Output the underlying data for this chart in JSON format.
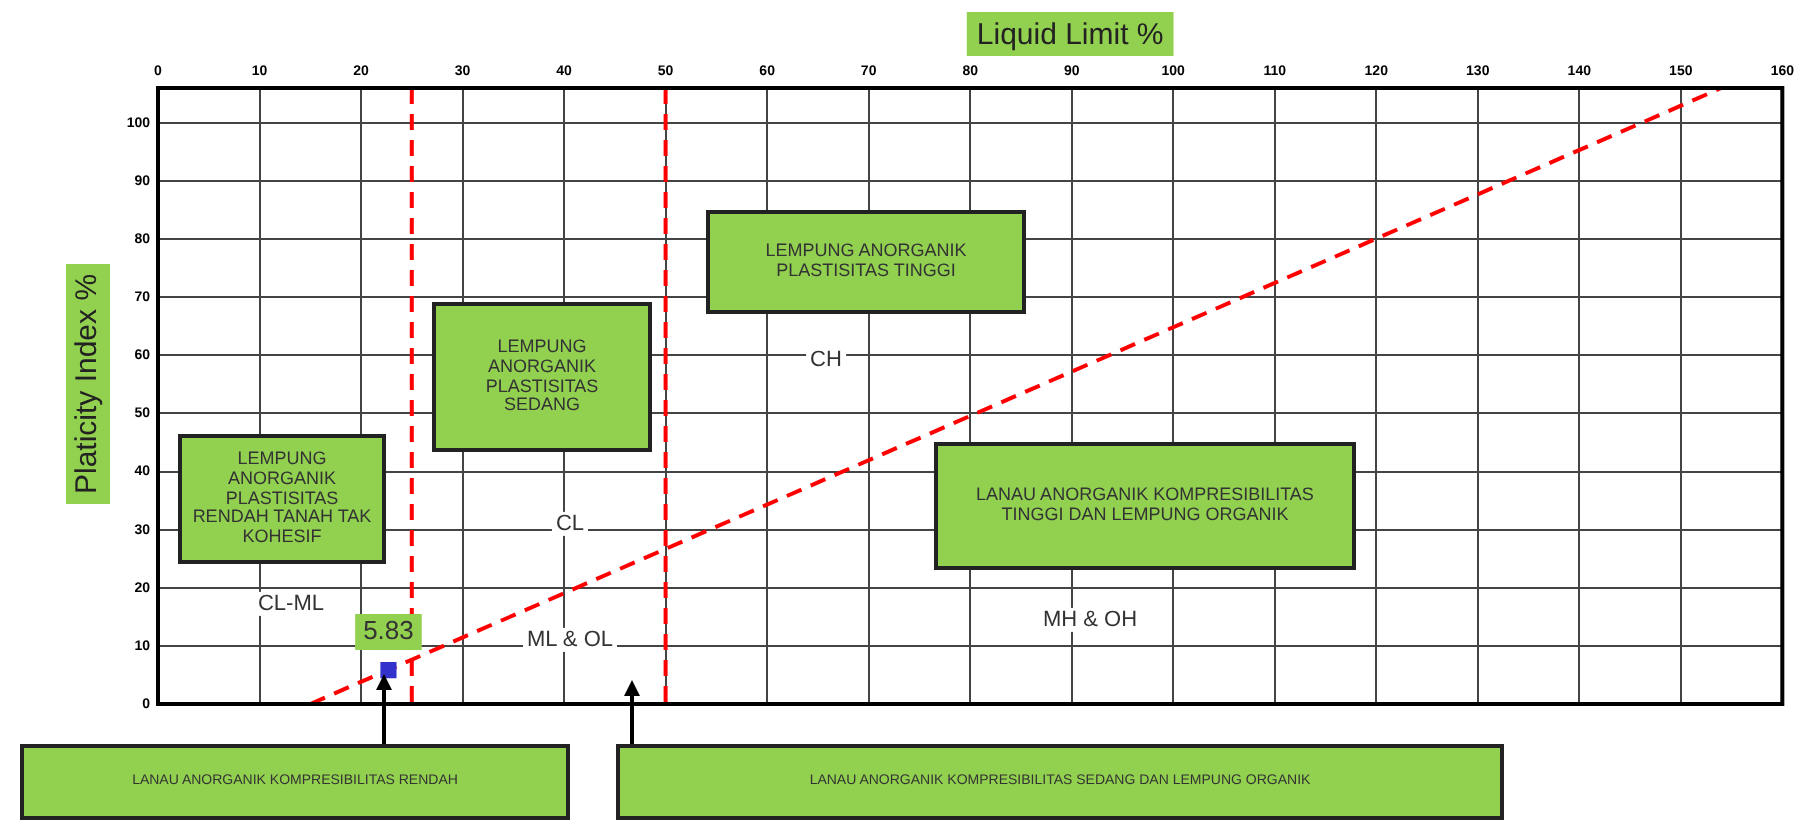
{
  "chart_data": {
    "type": "scatter",
    "xlabel": "Liquid Limit %",
    "ylabel": "Platicity Index %",
    "xlim": [
      0,
      160
    ],
    "xticks": [
      0,
      10,
      20,
      30,
      40,
      50,
      60,
      70,
      80,
      90,
      100,
      110,
      120,
      130,
      140,
      150,
      160
    ],
    "ylim": [
      0,
      106
    ],
    "yticks": [
      0,
      10,
      20,
      30,
      40,
      50,
      60,
      70,
      80,
      90,
      100
    ],
    "grid": true,
    "legend": false,
    "series": [
      {
        "type": "scatter",
        "x": [
          22.7
        ],
        "values": [
          5.83
        ],
        "color": "#3333cc",
        "marker": "square",
        "value_labels": [
          "5.83"
        ]
      },
      {
        "type": "line",
        "x": [
          15,
          154
        ],
        "values": [
          0,
          106
        ],
        "color": "#ff0000",
        "line_style": "dashed",
        "marker": "none"
      }
    ],
    "ref_lines": [
      {
        "axis": "x",
        "value": 25,
        "color": "#ff0000",
        "line_style": "dashed"
      },
      {
        "axis": "x",
        "value": 50,
        "color": "#ff0000",
        "line_style": "dashed"
      }
    ],
    "annotations": [
      "LEMPUNG ANORGANIK PLASTISITAS RENDAH TANAH TAK KOHESIF",
      "LEMPUNG ANORGANIK PLASTISITAS SEDANG",
      "LEMPUNG ANORGANIK PLASTISITAS TINGGI",
      "LANAU ANORGANIK KOMPRESIBILITAS TINGGI DAN LEMPUNG ORGANIK",
      "CL-ML",
      "CL",
      "CH",
      "ML & OL",
      "MH & OH",
      "LANAU ANORGANIK KOMPRESIBILITAS RENDAH",
      "LANAU ANORGANIK KOMPRESIBILITAS SEDANG DAN LEMPUNG ORGANIK"
    ]
  }
}
